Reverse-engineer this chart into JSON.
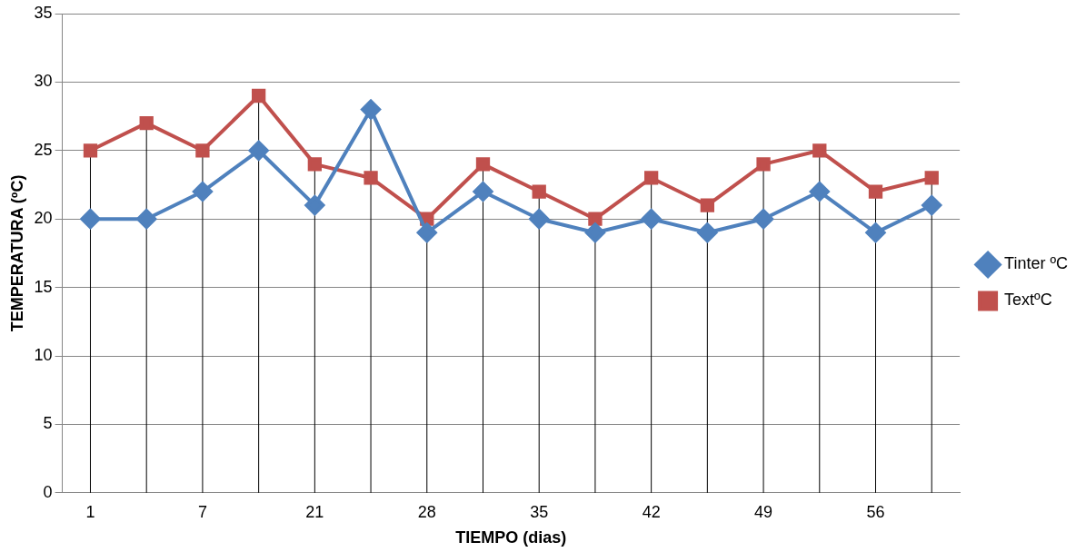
{
  "chart_data": {
    "type": "line",
    "xlabel": "TIEMPO (dias)",
    "ylabel": "TEMPERATURA (ºC)",
    "categories": [
      "1",
      null,
      "7",
      null,
      "21",
      null,
      "28",
      null,
      "35",
      null,
      "42",
      null,
      "49",
      null,
      "56",
      null
    ],
    "series": [
      {
        "name": "Tinter ºC",
        "color": "#4f81bd",
        "marker": "diamond",
        "values": [
          20,
          20,
          22,
          25,
          21,
          28,
          19,
          22,
          20,
          19,
          20,
          19,
          20,
          22,
          19,
          21
        ]
      },
      {
        "name": "TextºC",
        "color": "#c0504d",
        "marker": "square",
        "values": [
          25,
          27,
          25,
          29,
          24,
          23,
          20,
          24,
          22,
          20,
          23,
          21,
          24,
          25,
          22,
          23
        ]
      }
    ],
    "ylim": [
      0,
      35
    ],
    "yticks": [
      0,
      5,
      10,
      15,
      20,
      25,
      30,
      35
    ],
    "grid": true,
    "legend": "right"
  }
}
